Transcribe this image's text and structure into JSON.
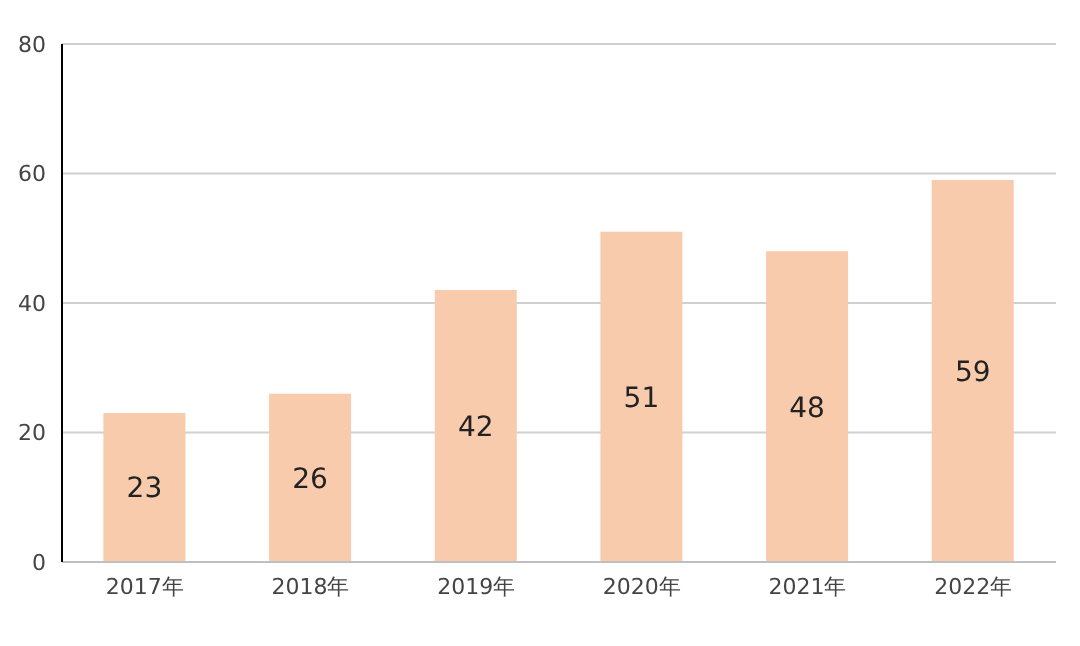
{
  "chart_data": {
    "type": "bar",
    "categories": [
      "2017年",
      "2018年",
      "2019年",
      "2020年",
      "2021年",
      "2022年"
    ],
    "values": [
      23,
      26,
      42,
      51,
      48,
      59
    ],
    "color": "#f8cbad",
    "ylim": [
      0,
      80
    ],
    "yticks": [
      0,
      20,
      40,
      60,
      80
    ],
    "grid": "y",
    "data_labels": true
  }
}
